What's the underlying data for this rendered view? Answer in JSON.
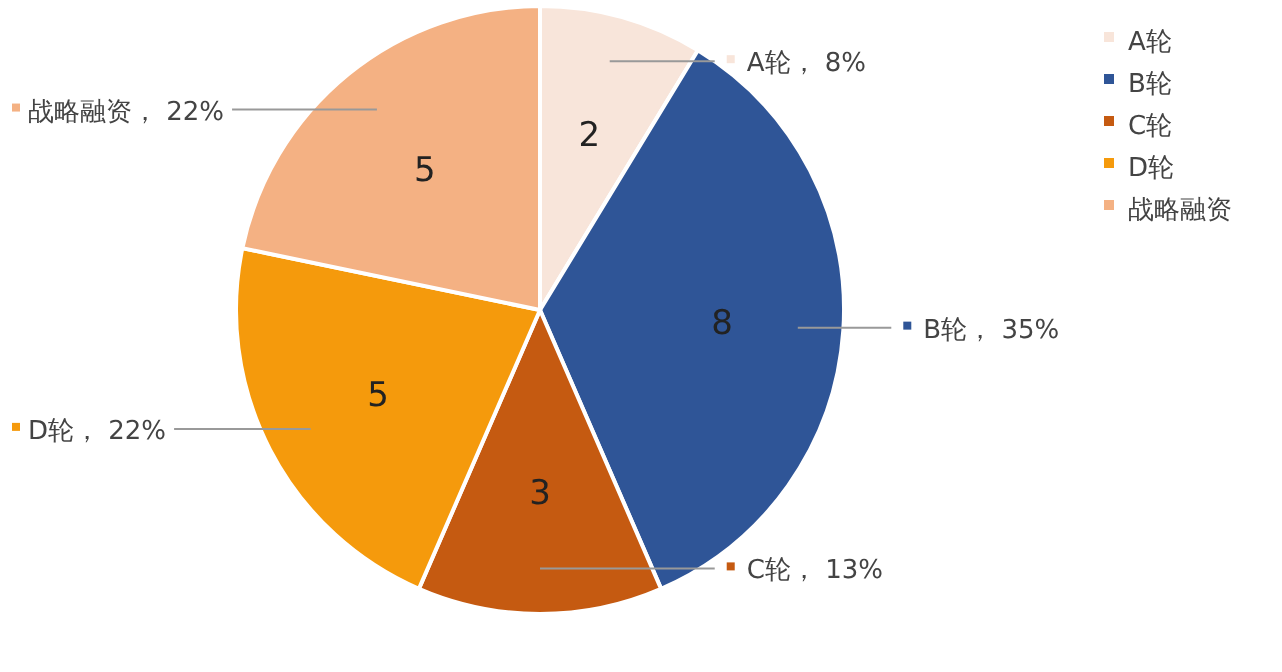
{
  "chart_data": {
    "type": "pie",
    "categories": [
      "A轮",
      "B轮",
      "C轮",
      "D轮",
      "战略融资"
    ],
    "values": [
      2,
      8,
      3,
      5,
      5
    ],
    "colors": [
      "#f8e5da",
      "#2f5597",
      "#c55a11",
      "#f59a0c",
      "#f4b183"
    ],
    "data_labels": true,
    "annotations": [
      {
        "text": "A轮，  8%",
        "x": "A轮"
      },
      {
        "text": "B轮，  35%",
        "x": "B轮"
      },
      {
        "text": "C轮，  13%",
        "x": "C轮"
      },
      {
        "text": "D轮，  22%",
        "x": "D轮"
      },
      {
        "text": "战略融资，  22%",
        "x": "战略融资"
      }
    ],
    "legend": "top right"
  }
}
